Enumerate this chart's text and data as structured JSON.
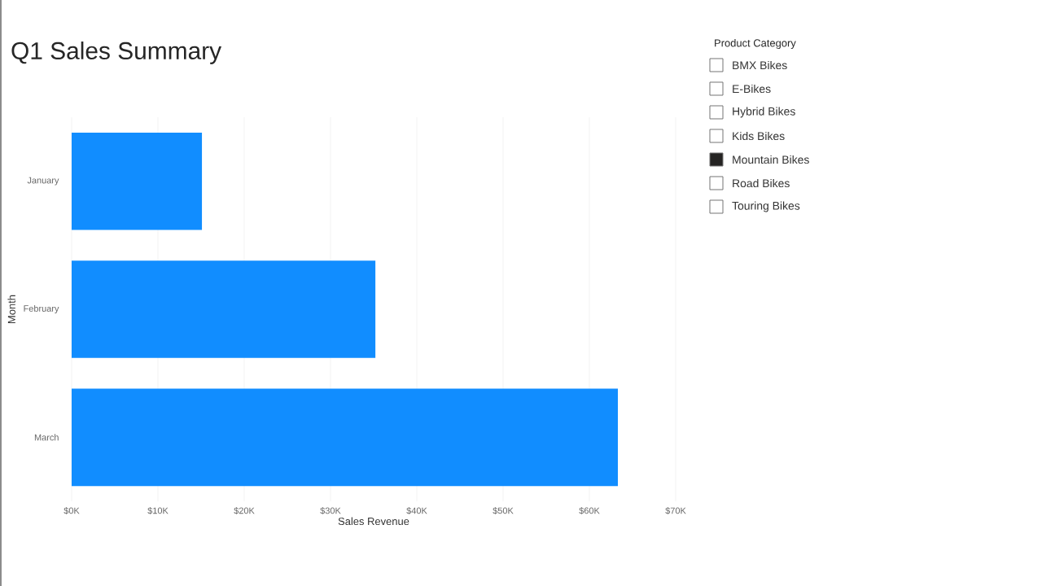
{
  "chart_data": [
    {
      "type": "bar",
      "orientation": "horizontal",
      "title": "Q1 Sales Summary",
      "xlabel": "Sales Revenue",
      "ylabel": "Month",
      "categories": [
        "January",
        "February",
        "March"
      ],
      "values": [
        15100,
        35200,
        63300
      ],
      "color": "#118dff",
      "xlim": [
        0,
        70000
      ],
      "xticks": [
        {
          "value": 0,
          "label": "$0K"
        },
        {
          "value": 10000,
          "label": "$10K"
        },
        {
          "value": 20000,
          "label": "$20K"
        },
        {
          "value": 30000,
          "label": "$30K"
        },
        {
          "value": 40000,
          "label": "$40K"
        },
        {
          "value": 50000,
          "label": "$50K"
        },
        {
          "value": 60000,
          "label": "$60K"
        },
        {
          "value": 70000,
          "label": "$70K"
        }
      ],
      "grid": "x"
    },
    {
      "type": "other",
      "title": "Product Category",
      "categories": [
        "BMX Bikes",
        "E-Bikes",
        "Hybrid Bikes",
        "Kids Bikes",
        "Mountain Bikes",
        "Road Bikes",
        "Touring Bikes"
      ],
      "colors": [
        "#ffffff",
        "#ffffff",
        "#ffffff",
        "#ffffff",
        "#252423",
        "#ffffff",
        "#ffffff"
      ]
    }
  ]
}
